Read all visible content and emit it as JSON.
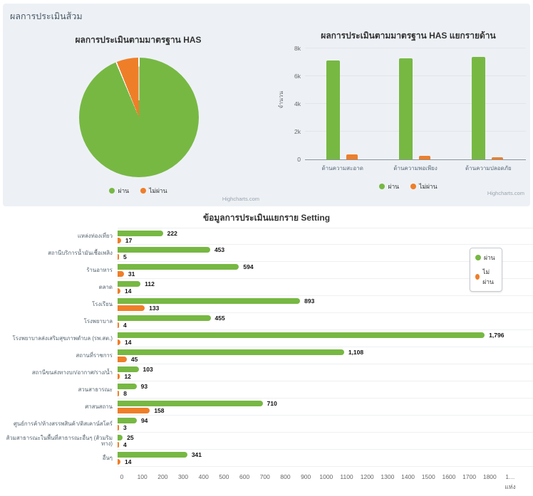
{
  "panel": {
    "title": "ผลการประเมินส้วม"
  },
  "credit": "Highcharts.com",
  "legend": {
    "pass": "ผ่าน",
    "fail": "ไม่ผ่าน"
  },
  "colors": {
    "pass": "#77b843",
    "fail": "#ef7e29",
    "panel_bg": "#edf1f5"
  },
  "chart_data": [
    {
      "type": "pie",
      "title": "ผลการประเมินตามมาตรฐาน HAS",
      "legend_position": "bottom",
      "slices": [
        {
          "label": "ผ่าน",
          "percent": 93.8,
          "color": "#77b843"
        },
        {
          "label": "ไม่ผ่าน",
          "percent": 6.2,
          "color": "#ef7e29"
        }
      ]
    },
    {
      "type": "bar",
      "title": "ผลการประเมินตามมาตรฐาน HAS แยกรายด้าน",
      "categories": [
        "ด้านความสะอาด",
        "ด้านความพอเพียง",
        "ด้านความปลอดภัย"
      ],
      "series": [
        {
          "name": "ผ่าน",
          "color": "#77b843",
          "values": [
            7100,
            7250,
            7350
          ]
        },
        {
          "name": "ไม่ผ่าน",
          "color": "#ef7e29",
          "values": [
            350,
            270,
            170
          ]
        }
      ],
      "ylabel": "จำนวน",
      "ylim": [
        0,
        8000
      ],
      "y_ticks": [
        "0",
        "2k",
        "4k",
        "6k",
        "8k"
      ],
      "grid": true,
      "legend_position": "bottom"
    },
    {
      "type": "bar",
      "orientation": "horizontal",
      "title": "ข้อมูลการประเมินแยกราย Setting",
      "categories": [
        "แหล่งท่องเที่ยว",
        "สถานีบริการน้ำมันเชื้อเพลิง",
        "ร้านอาหาร",
        "ตลาด",
        "โรงเรียน",
        "โรงพยาบาล",
        "โรงพยาบาลส่งเสริมสุขภาพตำบล (รพ.สต.)",
        "สถานที่ราชการ",
        "สถานีขนส่งทางบก/อากาศ/ราง/น้ำ",
        "สวนสาธารณะ",
        "ศาสนสถาน",
        "ศูนย์การค้า/ห้างสรรพสินค้า/ดิสเคาน์สโตร์",
        "ส้วมสาธารณะในพื้นที่สาธารณะอื่นๆ (ส้วมริมทาง)",
        "อื่นๆ"
      ],
      "series": [
        {
          "name": "ผ่าน",
          "color": "#77b843",
          "values": [
            222,
            453,
            594,
            112,
            893,
            455,
            1796,
            1108,
            103,
            93,
            710,
            94,
            25,
            341
          ]
        },
        {
          "name": "ไม่ผ่าน",
          "color": "#ef7e29",
          "values": [
            17,
            5,
            31,
            14,
            133,
            4,
            14,
            45,
            12,
            8,
            158,
            3,
            4,
            14
          ]
        }
      ],
      "xlim": [
        0,
        1900
      ],
      "x_ticks": [
        "0",
        "100",
        "200",
        "300",
        "400",
        "500",
        "600",
        "700",
        "800",
        "900",
        "1000",
        "1100",
        "1200",
        "1300",
        "1400",
        "1500",
        "1600",
        "1700",
        "1800",
        "1…"
      ],
      "x_unit": "แห่ง",
      "legend_position": "right"
    }
  ]
}
